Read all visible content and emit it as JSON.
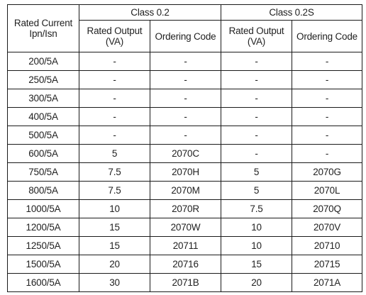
{
  "table": {
    "header": {
      "rated_current": [
        "Rated Current",
        "Ipn/Isn"
      ],
      "class_a": "Class 0.2",
      "class_b": "Class 0.2S",
      "rated_output": [
        "Rated Output",
        "(VA)"
      ],
      "ordering_code": "Ordering Code"
    },
    "rows": [
      {
        "current": "200/5A",
        "c02_va": "-",
        "c02_code": "-",
        "c02s_va": "-",
        "c02s_code": "-"
      },
      {
        "current": "250/5A",
        "c02_va": "-",
        "c02_code": "-",
        "c02s_va": "-",
        "c02s_code": "-"
      },
      {
        "current": "300/5A",
        "c02_va": "-",
        "c02_code": "-",
        "c02s_va": "-",
        "c02s_code": "-"
      },
      {
        "current": "400/5A",
        "c02_va": "-",
        "c02_code": "-",
        "c02s_va": "-",
        "c02s_code": "-"
      },
      {
        "current": "500/5A",
        "c02_va": "-",
        "c02_code": "-",
        "c02s_va": "-",
        "c02s_code": "-"
      },
      {
        "current": "600/5A",
        "c02_va": "5",
        "c02_code": "2070C",
        "c02s_va": "-",
        "c02s_code": "-"
      },
      {
        "current": "750/5A",
        "c02_va": "7.5",
        "c02_code": "2070H",
        "c02s_va": "5",
        "c02s_code": "2070G"
      },
      {
        "current": "800/5A",
        "c02_va": "7.5",
        "c02_code": "2070M",
        "c02s_va": "5",
        "c02s_code": "2070L"
      },
      {
        "current": "1000/5A",
        "c02_va": "10",
        "c02_code": "2070R",
        "c02s_va": "7.5",
        "c02s_code": "2070Q"
      },
      {
        "current": "1200/5A",
        "c02_va": "15",
        "c02_code": "2070W",
        "c02s_va": "10",
        "c02s_code": "2070V"
      },
      {
        "current": "1250/5A",
        "c02_va": "15",
        "c02_code": "20711",
        "c02s_va": "10",
        "c02s_code": "20710"
      },
      {
        "current": "1500/5A",
        "c02_va": "20",
        "c02_code": "20716",
        "c02s_va": "15",
        "c02s_code": "20715"
      },
      {
        "current": "1600/5A",
        "c02_va": "30",
        "c02_code": "2071B",
        "c02s_va": "20",
        "c02s_code": "2071A"
      }
    ]
  }
}
